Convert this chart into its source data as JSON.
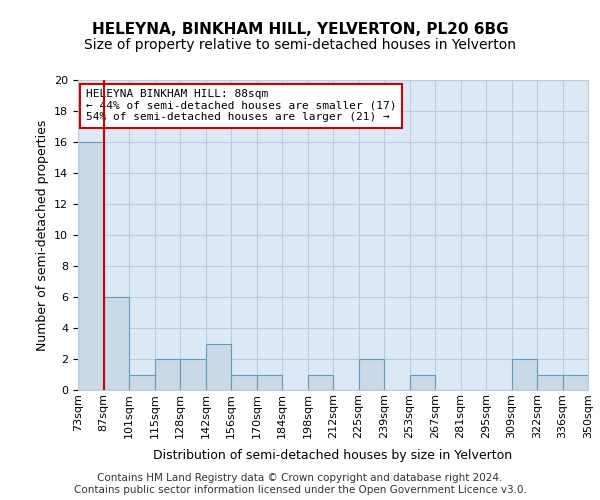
{
  "title": "HELEYNA, BINKHAM HILL, YELVERTON, PL20 6BG",
  "subtitle": "Size of property relative to semi-detached houses in Yelverton",
  "xlabel": "Distribution of semi-detached houses by size in Yelverton",
  "ylabel": "Number of semi-detached properties",
  "categories": [
    "73sqm",
    "87sqm",
    "101sqm",
    "115sqm",
    "128sqm",
    "142sqm",
    "156sqm",
    "170sqm",
    "184sqm",
    "198sqm",
    "212sqm",
    "225sqm",
    "239sqm",
    "253sqm",
    "267sqm",
    "281sqm",
    "295sqm",
    "309sqm",
    "322sqm",
    "336sqm",
    "350sqm"
  ],
  "bar_values": [
    16,
    6,
    1,
    2,
    2,
    3,
    1,
    1,
    0,
    1,
    0,
    2,
    0,
    1,
    0,
    0,
    0,
    2,
    1,
    1
  ],
  "bar_color": "#c9d9e8",
  "bar_edge_color": "#6699bb",
  "property_line_x": 1,
  "property_line_color": "#cc0000",
  "ylim": [
    0,
    20
  ],
  "yticks": [
    0,
    2,
    4,
    6,
    8,
    10,
    12,
    14,
    16,
    18,
    20
  ],
  "annotation_text": "HELEYNA BINKHAM HILL: 88sqm\n← 44% of semi-detached houses are smaller (17)\n54% of semi-detached houses are larger (21) →",
  "annotation_box_color": "#ffffff",
  "annotation_box_edge": "#cc0000",
  "footer_text": "Contains HM Land Registry data © Crown copyright and database right 2024.\nContains public sector information licensed under the Open Government Licence v3.0.",
  "background_color": "#dce9f5",
  "grid_color": "#bbccdd",
  "title_fontsize": 11,
  "subtitle_fontsize": 10,
  "axis_label_fontsize": 9,
  "tick_fontsize": 8,
  "annotation_fontsize": 8,
  "footer_fontsize": 7.5
}
